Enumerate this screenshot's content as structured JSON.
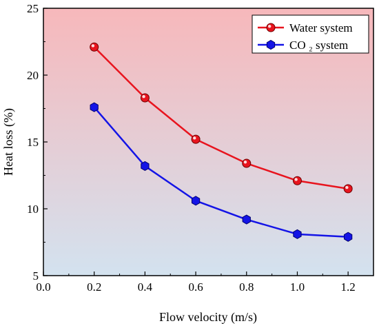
{
  "chart_data": {
    "type": "line",
    "title": "",
    "xlabel": "Flow velocity (m/s)",
    "ylabel": "Heat loss (%)",
    "xlim": [
      0.0,
      1.3
    ],
    "ylim": [
      5,
      25
    ],
    "xticks": [
      0.0,
      0.2,
      0.4,
      0.6,
      0.8,
      1.0,
      1.2
    ],
    "yticks": [
      5,
      10,
      15,
      20,
      25
    ],
    "xtick_labels": [
      "0.0",
      "0.2",
      "0.4",
      "0.6",
      "0.8",
      "1.0",
      "1.2"
    ],
    "ytick_labels": [
      "5",
      "10",
      "15",
      "20",
      "25"
    ],
    "grid": false,
    "legend_position": "top-right",
    "background_gradient": [
      "#f7b8bb",
      "#d3e2ef"
    ],
    "series": [
      {
        "name": "Water system",
        "color": "#e8141e",
        "marker": "circle",
        "x": [
          0.2,
          0.4,
          0.6,
          0.8,
          1.0,
          1.2
        ],
        "y": [
          22.1,
          18.3,
          15.2,
          13.4,
          12.1,
          11.5
        ]
      },
      {
        "name": "CO ₂ system",
        "color": "#1414e6",
        "marker": "hexagon",
        "x": [
          0.2,
          0.4,
          0.6,
          0.8,
          1.0,
          1.2
        ],
        "y": [
          17.6,
          13.2,
          10.6,
          9.2,
          8.1,
          7.9
        ]
      }
    ]
  }
}
